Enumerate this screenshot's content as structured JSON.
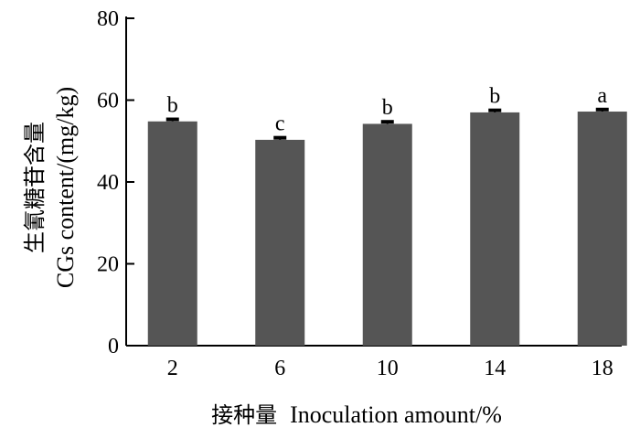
{
  "chart_data": {
    "type": "bar",
    "categories": [
      "2",
      "6",
      "10",
      "14",
      "18"
    ],
    "values": [
      54.8,
      50.3,
      54.2,
      57.0,
      57.2
    ],
    "errors": [
      0.5,
      0.5,
      0.5,
      0.5,
      0.5
    ],
    "letters": [
      "b",
      "c",
      "b",
      "b",
      "a"
    ],
    "ylabel_cn": "生氰糖苷含量",
    "ylabel_en": "CGs content/(mg/kg)",
    "xlabel_cn": "接种量",
    "xlabel_en": "Inoculation amount/%",
    "ylim": [
      0,
      80
    ],
    "yticks": [
      "0",
      "20",
      "40",
      "60",
      "80"
    ],
    "bar_color": "#555555",
    "grid": false
  }
}
